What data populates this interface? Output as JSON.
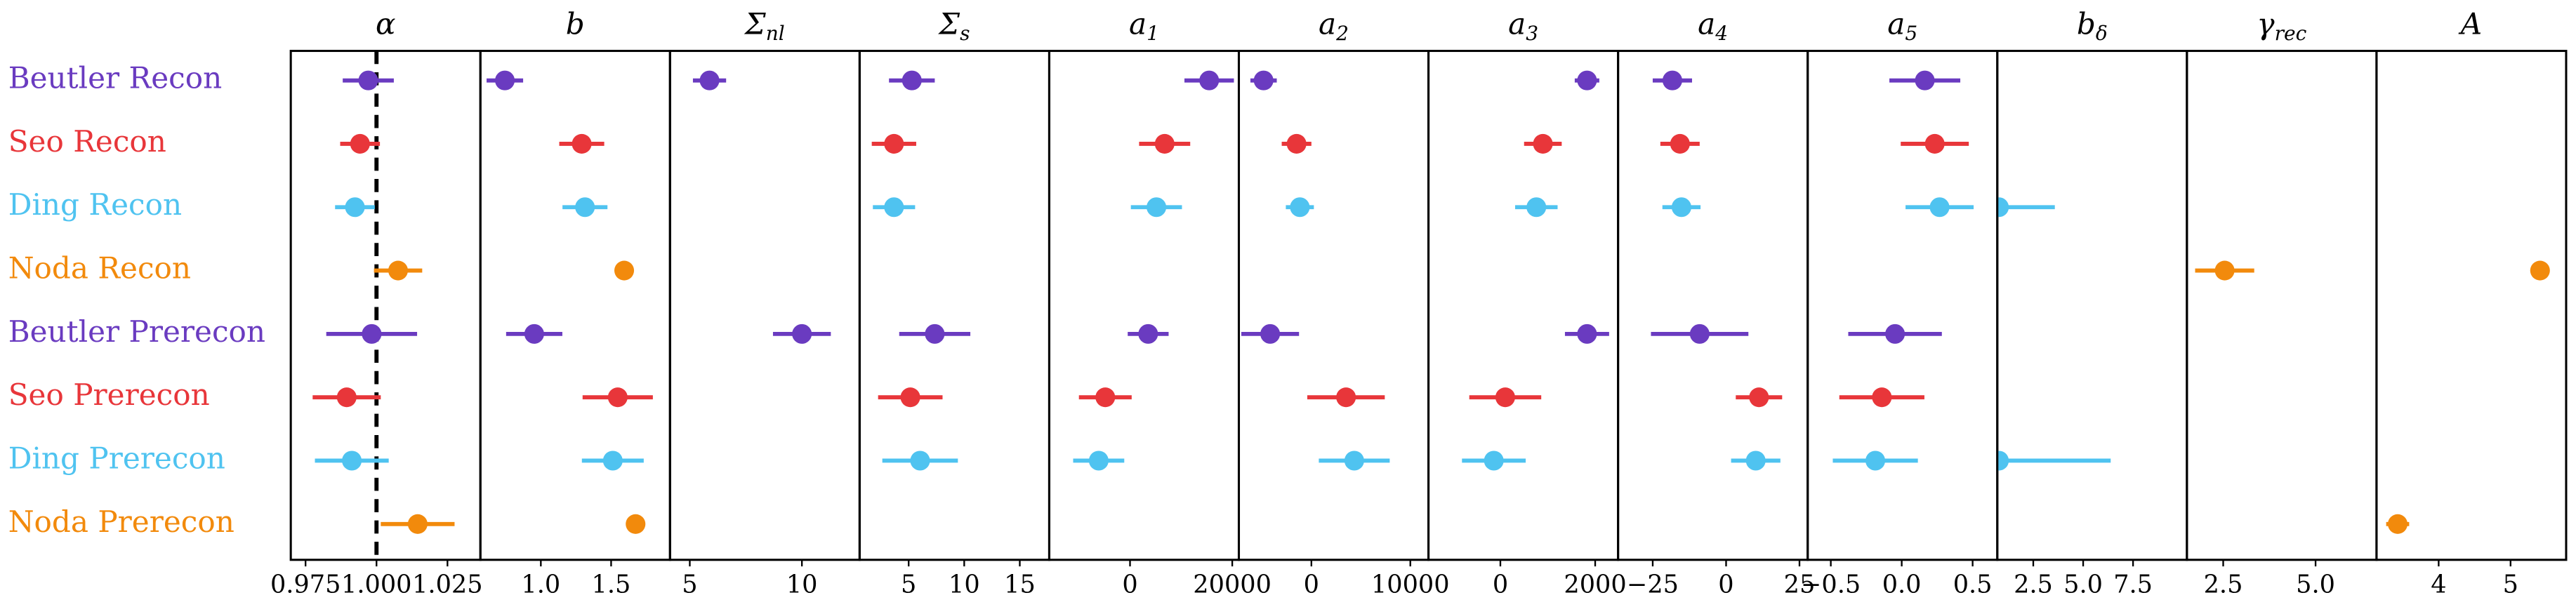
{
  "chart_data": {
    "type": "forest",
    "rows": [
      {
        "name": "Beutler Recon",
        "color": "#6a3bc0"
      },
      {
        "name": "Seo Recon",
        "color": "#e8363a"
      },
      {
        "name": "Ding Recon",
        "color": "#4fc3f0"
      },
      {
        "name": "Noda Recon",
        "color": "#f28a0c"
      },
      {
        "name": "Beutler Prerecon",
        "color": "#6a3bc0"
      },
      {
        "name": "Seo Prerecon",
        "color": "#e8363a"
      },
      {
        "name": "Ding Prerecon",
        "color": "#4fc3f0"
      },
      {
        "name": "Noda Prerecon",
        "color": "#f28a0c"
      }
    ],
    "reference_line": {
      "panel": 0,
      "value": 1
    },
    "panels": [
      {
        "title": "α",
        "xlim": [
          0.9698,
          1.0366
        ],
        "xticks": [
          {
            "value": 0.975,
            "label": "0.975"
          },
          {
            "value": 1,
            "label": "1.000"
          },
          {
            "value": 1.025,
            "label": "1.025"
          }
        ],
        "values": [
          0.9971,
          0.9942,
          0.9924,
          1.0076,
          0.9983,
          0.9895,
          0.9913,
          1.0145
        ],
        "errors": [
          0.009,
          0.007,
          0.007,
          0.0085,
          0.016,
          0.012,
          0.013,
          0.013
        ]
      },
      {
        "title": "b",
        "xlim": [
          0.57,
          1.919
        ],
        "xticks": [
          {
            "value": 1,
            "label": "1.0"
          },
          1.5
        ],
        "values": [
          0.744,
          1.291,
          1.314,
          1.593,
          0.953,
          1.547,
          1.512,
          1.674
        ],
        "errors": [
          0.13,
          0.16,
          0.16,
          0.02,
          0.2,
          0.25,
          0.22,
          0.02
        ]
      },
      {
        "title": "Σ",
        "title_sub": "nl",
        "xlim": [
          4.118,
          12.574
        ],
        "xticks": [
          5,
          10
        ],
        "values": [
          5.88,
          null,
          null,
          null,
          10.0,
          null,
          null,
          null
        ],
        "errors": [
          0.74,
          null,
          null,
          null,
          1.29,
          null,
          null,
          null
        ]
      },
      {
        "title": "Σ",
        "title_sub": "s",
        "xlim": [
          0.588,
          17.65
        ],
        "xticks": [
          5,
          10,
          15
        ],
        "values": [
          5.29,
          3.68,
          3.68,
          null,
          7.35,
          5.15,
          6.03,
          null
        ],
        "errors": [
          2.06,
          2.0,
          1.9,
          null,
          3.2,
          2.9,
          3.4,
          null
        ]
      },
      {
        "title": "a",
        "title_sub": "1",
        "xlim": [
          -15806,
          21290
        ],
        "xticks": [
          0,
          20000
        ],
        "values": [
          15484,
          6774,
          5161,
          null,
          3548,
          -4839,
          -6129,
          null
        ],
        "errors": [
          4839,
          5000,
          5000,
          null,
          4000,
          5161,
          5000,
          null
        ]
      },
      {
        "title": "a",
        "title_sub": "2",
        "xlim": [
          -7333,
          11833
        ],
        "xticks": [
          0,
          10000
        ],
        "values": [
          -4833,
          -1500,
          -1167,
          null,
          -4167,
          3500,
          4333,
          null
        ],
        "errors": [
          1333,
          1500,
          1417,
          null,
          2917,
          3917,
          3583,
          null
        ]
      },
      {
        "title": "a",
        "title_sub": "3",
        "xlim": [
          -1517,
          2483
        ],
        "xticks": [
          0,
          2000
        ],
        "values": [
          1828,
          897,
          759,
          null,
          1828,
          103,
          -138,
          null
        ],
        "errors": [
          259,
          397,
          448,
          null,
          466,
          759,
          672,
          null
        ]
      },
      {
        "title": "a",
        "title_sub": "4",
        "xlim": [
          -36.8,
          27.8
        ],
        "xticks": [
          {
            "value": -25,
            "label": "−25"
          },
          0,
          25
        ],
        "values": [
          -18.3,
          -15.7,
          -15.2,
          null,
          -9.0,
          11.2,
          10.1,
          null
        ],
        "errors": [
          6.7,
          6.7,
          6.5,
          null,
          16.6,
          7.9,
          8.4,
          null
        ]
      },
      {
        "title": "a",
        "title_sub": "5",
        "xlim": [
          -0.663,
          0.674
        ],
        "xticks": [
          {
            "value": -0.5,
            "label": "−0.5"
          },
          {
            "value": 0,
            "label": "0.0"
          },
          0.5
        ],
        "values": [
          0.163,
          0.233,
          0.267,
          null,
          -0.047,
          -0.14,
          -0.186,
          null
        ],
        "errors": [
          0.25,
          0.24,
          0.24,
          null,
          0.33,
          0.3,
          0.3,
          null
        ]
      },
      {
        "title": "b",
        "title_sub": "δ",
        "xlim": [
          0.697,
          10.2
        ],
        "xticks": [
          2.5,
          {
            "value": 5,
            "label": "5.0"
          },
          7.5
        ],
        "values": [
          null,
          null,
          0.78,
          null,
          null,
          null,
          0.78,
          null
        ],
        "errors": [
          null,
          null,
          2.8,
          null,
          null,
          null,
          5.6,
          null
        ]
      },
      {
        "title": "γ",
        "title_sub": "rec",
        "xlim": [
          1.518,
          6.65
        ],
        "xticks": [
          2.5,
          {
            "value": 5,
            "label": "5.0"
          }
        ],
        "values": [
          null,
          null,
          null,
          2.54,
          null,
          null,
          null,
          null
        ],
        "errors": [
          null,
          null,
          null,
          0.8,
          null,
          null,
          null,
          null
        ]
      },
      {
        "title": "A",
        "xlim": [
          3.136,
          5.773
        ],
        "xticks": [
          4,
          5
        ],
        "values": [
          null,
          null,
          null,
          5.41,
          null,
          null,
          null,
          3.43
        ],
        "errors": [
          null,
          null,
          null,
          0.12,
          null,
          null,
          null,
          0.16
        ]
      }
    ]
  }
}
